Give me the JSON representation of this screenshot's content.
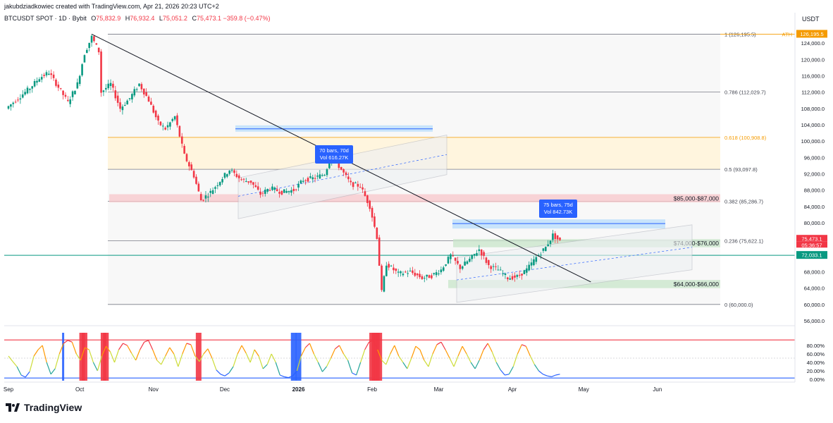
{
  "header": {
    "credit": "jakubdziadkowiec created with TradingView.com, Apr 21, 2026 20:23 UTC+2",
    "symbol": "BTCUSDT SPOT · 1D · Bybit",
    "o_label": "O",
    "o_value": "75,832.9",
    "h_label": "H",
    "h_value": "76,932.4",
    "l_label": "L",
    "l_value": "75,051.2",
    "c_label": "C",
    "c_value": "75,473.1",
    "change": "−359.8 (−0.47%)"
  },
  "axis": {
    "currency": "USDT"
  },
  "footer": {
    "brand": "TradingView"
  },
  "colors": {
    "up": "#089981",
    "down": "#f23645",
    "trend": "#131722",
    "fib_gray": "#787b86",
    "fib_orange": "#f59b00",
    "green_zone": "#4caf50",
    "red_zone": "#f23645",
    "blue": "#2962ff",
    "rsi_line": "#f23645"
  },
  "chart_data": [
    {
      "type": "candlestick",
      "title": "BTCUSDT SPOT · 1D · Bybit",
      "x_ticks": [
        "Sep",
        "Oct",
        "Nov",
        "Dec",
        "2026",
        "Feb",
        "Mar",
        "Apr",
        "May",
        "Jun"
      ],
      "y_ticks": [
        "126,195.5",
        "124,000.0",
        "120,000.0",
        "116,000.0",
        "112,000.0",
        "108,000.0",
        "104,000.0",
        "100,000.0",
        "96,000.0",
        "92,000.0",
        "88,000.0",
        "84,000.0",
        "80,000.0",
        "76,000.0",
        "72,000.0",
        "68,000.0",
        "64,000.0",
        "60,000.0",
        "56,000.0"
      ],
      "ylim": [
        56000,
        128000
      ],
      "price_close_path": [
        [
          "Sep 1",
          108500
        ],
        [
          "Sep 6",
          111000
        ],
        [
          "Sep 10",
          113000
        ],
        [
          "Sep 14",
          115500
        ],
        [
          "Sep 18",
          116800
        ],
        [
          "Sep 22",
          113200
        ],
        [
          "Sep 26",
          109500
        ],
        [
          "Sep 30",
          114000
        ],
        [
          "Oct 3",
          121500
        ],
        [
          "Oct 6",
          125500
        ],
        [
          "Oct 9",
          122000
        ],
        [
          "Oct 10",
          112000
        ],
        [
          "Oct 14",
          114000
        ],
        [
          "Oct 18",
          108000
        ],
        [
          "Oct 22",
          110500
        ],
        [
          "Oct 26",
          114000
        ],
        [
          "Oct 30",
          110000
        ],
        [
          "Nov 3",
          104500
        ],
        [
          "Nov 6",
          103000
        ],
        [
          "Nov 10",
          106000
        ],
        [
          "Nov 14",
          96500
        ],
        [
          "Nov 18",
          91500
        ],
        [
          "Nov 21",
          85500
        ],
        [
          "Nov 25",
          87500
        ],
        [
          "Nov 30",
          91000
        ],
        [
          "Dec 3",
          93000
        ],
        [
          "Dec 8",
          90500
        ],
        [
          "Dec 12",
          90000
        ],
        [
          "Dec 16",
          87000
        ],
        [
          "Dec 20",
          88500
        ],
        [
          "Dec 25",
          87500
        ],
        [
          "Dec 30",
          88000
        ],
        [
          "Jan 3",
          90500
        ],
        [
          "Jan 8",
          91000
        ],
        [
          "Jan 12",
          92000
        ],
        [
          "Jan 15",
          96500
        ],
        [
          "Jan 19",
          93000
        ],
        [
          "Jan 23",
          89500
        ],
        [
          "Jan 27",
          89000
        ],
        [
          "Jan 31",
          84000
        ],
        [
          "Feb 3",
          76500
        ],
        [
          "Feb 5",
          63000
        ],
        [
          "Feb 7",
          70000
        ],
        [
          "Feb 12",
          67500
        ],
        [
          "Feb 17",
          68000
        ],
        [
          "Feb 22",
          66500
        ],
        [
          "Feb 26",
          67000
        ],
        [
          "Mar 2",
          68500
        ],
        [
          "Mar 6",
          72000
        ],
        [
          "Mar 10",
          69000
        ],
        [
          "Mar 14",
          71000
        ],
        [
          "Mar 18",
          73500
        ],
        [
          "Mar 22",
          69500
        ],
        [
          "Mar 26",
          68500
        ],
        [
          "Mar 30",
          66500
        ],
        [
          "Apr 3",
          66800
        ],
        [
          "Apr 7",
          68500
        ],
        [
          "Apr 11",
          71500
        ],
        [
          "Apr 15",
          74000
        ],
        [
          "Apr 18",
          77000
        ],
        [
          "Apr 21",
          75473.1
        ]
      ],
      "price_labels": [
        {
          "text": "126,195.5",
          "kind": "ath"
        },
        {
          "text": "75,473.1",
          "kind": "last"
        },
        {
          "text": "05:36:57",
          "kind": "countdown"
        },
        {
          "text": "72,033.1",
          "kind": "level"
        }
      ],
      "fib_levels": [
        {
          "label": "1 (126,195.5)",
          "value": 126195.5
        },
        {
          "label": "0.786 (112,029.7)",
          "value": 112029.7
        },
        {
          "label": "0.618 (100,908.8)",
          "value": 100908.8
        },
        {
          "label": "0.5 (93,097.8)",
          "value": 93097.8
        },
        {
          "label": "0.382 (85,286.7)",
          "value": 85286.7
        },
        {
          "label": "0.236 (75,622.1)",
          "value": 75622.1
        },
        {
          "label": "0 (60,000.0)",
          "value": 60000.0
        }
      ],
      "ath_label": "ATH",
      "horizontal_level": 72033.1,
      "zones": [
        {
          "label": "$85,000-$87,000",
          "low": 85000,
          "high": 87000,
          "color": "red"
        },
        {
          "label": "$74,000-$76,000",
          "low": 74000,
          "high": 76000,
          "color": "green"
        },
        {
          "label": "$64,000-$66,000",
          "low": 64000,
          "high": 66000,
          "color": "green"
        }
      ],
      "annotations": [
        {
          "lines": [
            "70 bars, 70d",
            "Vol 616.27K"
          ]
        },
        {
          "lines": [
            "75 bars, 75d",
            "Vol 842.73K"
          ]
        }
      ],
      "trendline": {
        "from": [
          "Oct 6",
          126195.5
        ],
        "to": [
          "May 4",
          65500
        ]
      }
    },
    {
      "type": "line",
      "title": "",
      "y_ticks": [
        "80.00%",
        "60.00%",
        "40.00%",
        "20.00%",
        "0.00%"
      ],
      "ylim": [
        0,
        100
      ],
      "upper_band": 93,
      "lower_band": 3,
      "oscillator": [
        55,
        42,
        30,
        10,
        5,
        18,
        55,
        70,
        80,
        40,
        12,
        25,
        60,
        85,
        92,
        88,
        60,
        45,
        75,
        70,
        40,
        20,
        55,
        78,
        65,
        40,
        70,
        85,
        80,
        62,
        45,
        70,
        88,
        92,
        70,
        45,
        35,
        55,
        75,
        60,
        30,
        60,
        85,
        82,
        55,
        42,
        60,
        72,
        50,
        22,
        12,
        8,
        15,
        30,
        60,
        80,
        62,
        40,
        70,
        55,
        25,
        35,
        60,
        40,
        10,
        6,
        4,
        8,
        20,
        55,
        75,
        85,
        60,
        40,
        18,
        30,
        50,
        72,
        80,
        60,
        45,
        15,
        10,
        40,
        70,
        88,
        92,
        70,
        45,
        35,
        60,
        80,
        55,
        40,
        25,
        50,
        78,
        70,
        45,
        30,
        60,
        82,
        88,
        70,
        50,
        30,
        55,
        78,
        60,
        40,
        25,
        45,
        70,
        85,
        65,
        40,
        22,
        10,
        12,
        30,
        60,
        82,
        78,
        55,
        35,
        20,
        12,
        8,
        6,
        10,
        12
      ],
      "blue_signal_dates": [
        "Sep 24",
        "Dec 30",
        "Jan 1"
      ],
      "red_signal_dates": [
        "Oct 2",
        "Oct 3",
        "Oct 11",
        "Oct 12",
        "Nov 20",
        "Feb 1",
        "Feb 2",
        "Feb 3",
        "Feb 4"
      ]
    }
  ]
}
